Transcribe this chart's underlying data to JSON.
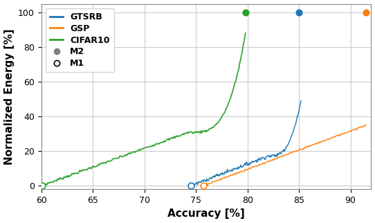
{
  "title": "",
  "xlabel": "Accuracy [%]",
  "ylabel": "Normalized Energy [%]",
  "xlim": [
    60,
    92
  ],
  "ylim": [
    -2,
    105
  ],
  "xticks": [
    60,
    65,
    70,
    75,
    80,
    85,
    90
  ],
  "yticks": [
    0,
    20,
    40,
    60,
    80,
    100
  ],
  "colors": {
    "GTSRB": "#1f77b4",
    "GSP": "#ff7f0e",
    "CIFAR10": "#2ca02c"
  },
  "CIFAR10_M1": [
    60.1,
    0.0
  ],
  "CIFAR10_M2": [
    79.8,
    100.0
  ],
  "GTSRB_M1": [
    74.5,
    0.0
  ],
  "GTSRB_M2": [
    85.0,
    100.0
  ],
  "GSP_M1": [
    75.7,
    0.0
  ],
  "GSP_M2": [
    91.5,
    100.0
  ],
  "figsize": [
    5.42,
    3.22
  ],
  "dpi": 100,
  "background_color": "#ffffff",
  "grid_color": "#cccccc",
  "fontsize_labels": 11,
  "fontsize_ticks": 9,
  "legend_fontsize": 9
}
